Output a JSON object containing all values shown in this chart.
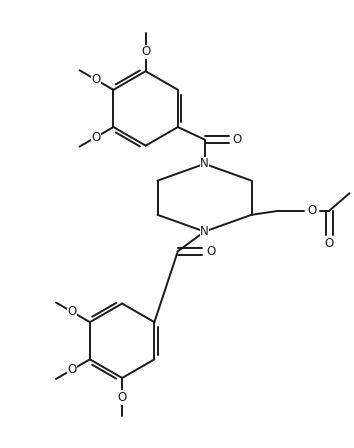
{
  "bg_color": "#ffffff",
  "line_color": "#1a1a1a",
  "line_width": 1.4,
  "font_size": 8.5,
  "font_family": "DejaVu Sans",
  "figsize": [
    3.54,
    4.48
  ],
  "dpi": 100,
  "xlim": [
    0,
    9.0
  ],
  "ylim": [
    0,
    11.4
  ]
}
